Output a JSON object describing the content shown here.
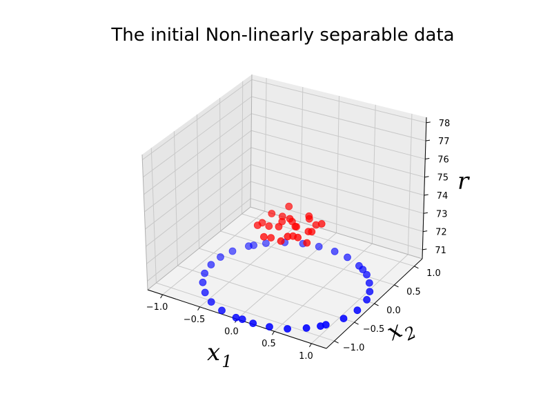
{
  "chart_data": {
    "type": "scatter",
    "projection": "3d",
    "title": "The initial Non-linearly separable data",
    "xlabel": "x",
    "xlabel_sub": "1",
    "ylabel": "x",
    "ylabel_sub": "2",
    "zlabel": "r",
    "xlim": [
      -1.2,
      1.2
    ],
    "ylim": [
      -1.2,
      1.2
    ],
    "zlim": [
      70.5,
      78.3
    ],
    "x_ticks": [
      "−1.0",
      "−0.5",
      "0.0",
      "0.5",
      "1.0"
    ],
    "y_ticks": [
      "−1.0",
      "−0.5",
      "0.0",
      "0.5",
      "1.0"
    ],
    "z_ticks": [
      "71",
      "72",
      "73",
      "74",
      "75",
      "76",
      "77",
      "78"
    ],
    "grid": true,
    "series": [
      {
        "color": "#0000ff",
        "points": [
          {
            "x": 1.0,
            "y": -0.05,
            "z": 70
          },
          {
            "x": 0.98,
            "y": 0.22,
            "z": 70
          },
          {
            "x": 0.92,
            "y": 0.4,
            "z": 70
          },
          {
            "x": 0.82,
            "y": 0.57,
            "z": 70
          },
          {
            "x": 0.7,
            "y": 0.72,
            "z": 70
          },
          {
            "x": 0.52,
            "y": 0.85,
            "z": 70
          },
          {
            "x": 0.3,
            "y": 0.95,
            "z": 70
          },
          {
            "x": 0.1,
            "y": 0.99,
            "z": 70
          },
          {
            "x": -0.12,
            "y": 0.99,
            "z": 70
          },
          {
            "x": -0.32,
            "y": 0.95,
            "z": 70
          },
          {
            "x": -0.52,
            "y": 0.86,
            "z": 70
          },
          {
            "x": -0.7,
            "y": 0.72,
            "z": 70
          },
          {
            "x": -0.84,
            "y": 0.55,
            "z": 70
          },
          {
            "x": -0.94,
            "y": 0.34,
            "z": 70
          },
          {
            "x": -0.99,
            "y": 0.14,
            "z": 70
          },
          {
            "x": -0.99,
            "y": -0.08,
            "z": 70
          },
          {
            "x": -0.95,
            "y": -0.3,
            "z": 70
          },
          {
            "x": -0.86,
            "y": -0.5,
            "z": 70
          },
          {
            "x": -0.72,
            "y": -0.69,
            "z": 70
          },
          {
            "x": -0.55,
            "y": -0.84,
            "z": 70
          },
          {
            "x": -0.35,
            "y": -0.94,
            "z": 70
          },
          {
            "x": -0.13,
            "y": -0.99,
            "z": 70
          },
          {
            "x": 0.1,
            "y": -0.99,
            "z": 70
          },
          {
            "x": 0.3,
            "y": -0.95,
            "z": 70
          },
          {
            "x": 0.5,
            "y": -0.87,
            "z": 70
          },
          {
            "x": 0.68,
            "y": -0.73,
            "z": 70
          },
          {
            "x": 0.84,
            "y": -0.54,
            "z": 70
          },
          {
            "x": 0.95,
            "y": -0.3,
            "z": 70
          },
          {
            "x": -0.05,
            "y": -0.98,
            "z": 70
          },
          {
            "x": 0.8,
            "y": -0.6,
            "z": 70
          },
          {
            "x": -0.8,
            "y": 0.6,
            "z": 70
          },
          {
            "x": 0.6,
            "y": 0.8,
            "z": 70
          }
        ]
      },
      {
        "color": "#ff0000",
        "points": [
          {
            "x": 0.05,
            "y": 0.1,
            "z": 73.1
          },
          {
            "x": -0.1,
            "y": 0.05,
            "z": 73.3
          },
          {
            "x": 0.12,
            "y": -0.08,
            "z": 73.0
          },
          {
            "x": -0.05,
            "y": -0.12,
            "z": 73.4
          },
          {
            "x": 0.2,
            "y": 0.15,
            "z": 72.9
          },
          {
            "x": -0.18,
            "y": 0.2,
            "z": 73.2
          },
          {
            "x": 0.15,
            "y": 0.25,
            "z": 73.5
          },
          {
            "x": -0.22,
            "y": -0.05,
            "z": 73.1
          },
          {
            "x": 0.25,
            "y": -0.2,
            "z": 73.3
          },
          {
            "x": 0.0,
            "y": 0.22,
            "z": 72.8
          },
          {
            "x": -0.08,
            "y": -0.25,
            "z": 73.0
          },
          {
            "x": 0.3,
            "y": 0.05,
            "z": 73.2
          },
          {
            "x": -0.28,
            "y": 0.12,
            "z": 73.4
          },
          {
            "x": 0.08,
            "y": -0.3,
            "z": 73.1
          },
          {
            "x": -0.15,
            "y": 0.3,
            "z": 73.6
          },
          {
            "x": 0.22,
            "y": 0.3,
            "z": 73.0
          },
          {
            "x": -0.3,
            "y": -0.18,
            "z": 73.3
          },
          {
            "x": 0.32,
            "y": -0.1,
            "z": 72.9
          },
          {
            "x": 0.03,
            "y": 0.0,
            "z": 73.7
          },
          {
            "x": -0.02,
            "y": 0.15,
            "z": 73.2
          },
          {
            "x": 0.1,
            "y": 0.35,
            "z": 73.1
          },
          {
            "x": -0.35,
            "y": 0.02,
            "z": 73.0
          },
          {
            "x": 0.35,
            "y": 0.2,
            "z": 73.4
          },
          {
            "x": -0.12,
            "y": -0.35,
            "z": 73.2
          },
          {
            "x": 0.18,
            "y": -0.32,
            "z": 73.5
          }
        ]
      }
    ]
  }
}
